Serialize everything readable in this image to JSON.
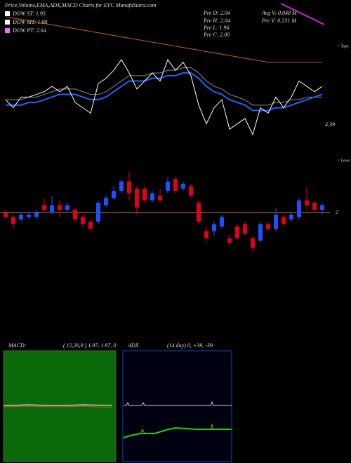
{
  "chart_data": {
    "type": "candlestick",
    "title": "Price,Volume,EMA,ADX,MACD Charts for EVC MunafaSutra.com",
    "legend": [
      {
        "label": "DOW ST: 1.95",
        "color": "#ffffff"
      },
      {
        "label": "DOW MT: 1.98",
        "color": "#ffffff"
      },
      {
        "label": "DOW PT: 2.64",
        "color": "#ff66ff"
      }
    ],
    "info": [
      "Pre  O: 2.04",
      "Pre  H: 2.04",
      "Pre  L: 1.96",
      "Pre  C: 2.00",
      "Avg V: 0.048 M",
      "Pre  V: 0.231 M"
    ],
    "tops_label": "< Tops",
    "lows_label": "< Lows",
    "overlay_label": "4.39",
    "up_color": "#1f4fff",
    "down_color": "#e0001a",
    "level_color": "#c8641e",
    "ylim": [
      1.8,
      2.2
    ],
    "yticks": [
      2
    ],
    "candles": [
      [
        2.0,
        2.01,
        1.97,
        1.98
      ],
      [
        1.98,
        1.99,
        1.93,
        1.95
      ],
      [
        1.97,
        2.0,
        1.96,
        1.99
      ],
      [
        1.98,
        2.0,
        1.97,
        1.99
      ],
      [
        1.98,
        2.01,
        1.97,
        2.0
      ],
      [
        2.03,
        2.06,
        2.0,
        2.01
      ],
      [
        2.0,
        2.07,
        1.99,
        2.03
      ],
      [
        2.03,
        2.05,
        1.98,
        2.01
      ],
      [
        2.01,
        2.04,
        2.0,
        2.03
      ],
      [
        2.01,
        2.02,
        1.96,
        1.97
      ],
      [
        1.98,
        1.99,
        1.94,
        1.95
      ],
      [
        1.96,
        1.97,
        1.92,
        1.93
      ],
      [
        1.96,
        2.05,
        1.95,
        2.04
      ],
      [
        2.03,
        2.07,
        2.02,
        2.06
      ],
      [
        2.06,
        2.11,
        2.05,
        2.09
      ],
      [
        2.09,
        2.14,
        2.08,
        2.13
      ],
      [
        2.13,
        2.17,
        2.05,
        2.08
      ],
      [
        2.1,
        2.11,
        1.99,
        2.02
      ],
      [
        2.1,
        2.11,
        2.04,
        2.05
      ],
      [
        2.05,
        2.09,
        2.04,
        2.08
      ],
      [
        2.07,
        2.1,
        2.04,
        2.05
      ],
      [
        2.09,
        2.15,
        2.08,
        2.13
      ],
      [
        2.14,
        2.15,
        2.08,
        2.09
      ],
      [
        2.1,
        2.13,
        2.09,
        2.12
      ],
      [
        2.11,
        2.12,
        2.06,
        2.07
      ],
      [
        2.04,
        2.05,
        1.95,
        1.96
      ],
      [
        1.92,
        1.94,
        1.87,
        1.89
      ],
      [
        1.92,
        1.96,
        1.9,
        1.95
      ],
      [
        1.94,
        1.99,
        1.93,
        1.98
      ],
      [
        1.89,
        1.91,
        1.86,
        1.87
      ],
      [
        1.94,
        1.95,
        1.88,
        1.89
      ],
      [
        1.95,
        1.96,
        1.9,
        1.91
      ],
      [
        1.89,
        1.9,
        1.83,
        1.85
      ],
      [
        1.88,
        1.96,
        1.87,
        1.95
      ],
      [
        1.95,
        1.96,
        1.92,
        1.93
      ],
      [
        1.93,
        2.02,
        1.92,
        1.99
      ],
      [
        1.98,
        1.99,
        1.94,
        1.95
      ],
      [
        1.97,
        2.0,
        1.96,
        1.99
      ],
      [
        1.98,
        2.06,
        1.97,
        2.05
      ],
      [
        2.05,
        2.11,
        2.01,
        2.03
      ],
      [
        2.04,
        2.05,
        2.0,
        2.01
      ],
      [
        2.01,
        2.04,
        1.99,
        2.03
      ]
    ],
    "overlay": {
      "ylim": [
        1.75,
        2.3
      ],
      "close_color": "#ffffff",
      "series": [
        {
          "color": "#c8641e",
          "values": [
            2.29,
            2.285,
            2.28,
            2.275,
            2.27,
            2.265,
            2.26,
            2.255,
            2.25,
            2.245,
            2.24,
            2.235,
            2.23,
            2.225,
            2.22,
            2.215,
            2.21,
            2.205,
            2.2,
            2.195,
            2.19,
            2.185,
            2.18,
            2.175,
            2.17,
            2.165,
            2.16,
            2.155,
            2.15,
            2.145,
            2.14,
            2.135,
            2.13,
            2.125,
            2.12,
            2.12,
            2.12,
            2.12,
            2.12,
            2.12,
            2.12,
            2.12
          ]
        },
        {
          "color": "#888888",
          "values": [
            1.98,
            1.98,
            1.98,
            1.99,
            1.99,
            2.0,
            2.01,
            2.02,
            2.02,
            2.02,
            2.01,
            2.0,
            2.0,
            2.01,
            2.03,
            2.05,
            2.07,
            2.07,
            2.07,
            2.08,
            2.08,
            2.09,
            2.09,
            2.1,
            2.1,
            2.08,
            2.05,
            2.03,
            2.02,
            2.0,
            1.99,
            1.98,
            1.96,
            1.96,
            1.96,
            1.97,
            1.97,
            1.98,
            1.98,
            1.99,
            1.99,
            1.99
          ]
        },
        {
          "color": "#2060ff",
          "values": [
            1.96,
            1.96,
            1.96,
            1.97,
            1.97,
            1.98,
            1.99,
            2.0,
            2.0,
            2.0,
            1.99,
            1.98,
            1.98,
            1.99,
            2.01,
            2.03,
            2.05,
            2.05,
            2.05,
            2.06,
            2.06,
            2.07,
            2.07,
            2.08,
            2.08,
            2.06,
            2.03,
            2.01,
            2.0,
            1.98,
            1.97,
            1.96,
            1.94,
            1.94,
            1.94,
            1.95,
            1.95,
            1.96,
            1.97,
            1.98,
            1.99,
            2.0
          ]
        }
      ]
    },
    "macd_label": "MACD:",
    "macd_params": "( 12,26,9 ) 1.97, 1.97, 0",
    "adx_label": "ADX",
    "adx_params": "(14 day) 0, +39, -39"
  }
}
